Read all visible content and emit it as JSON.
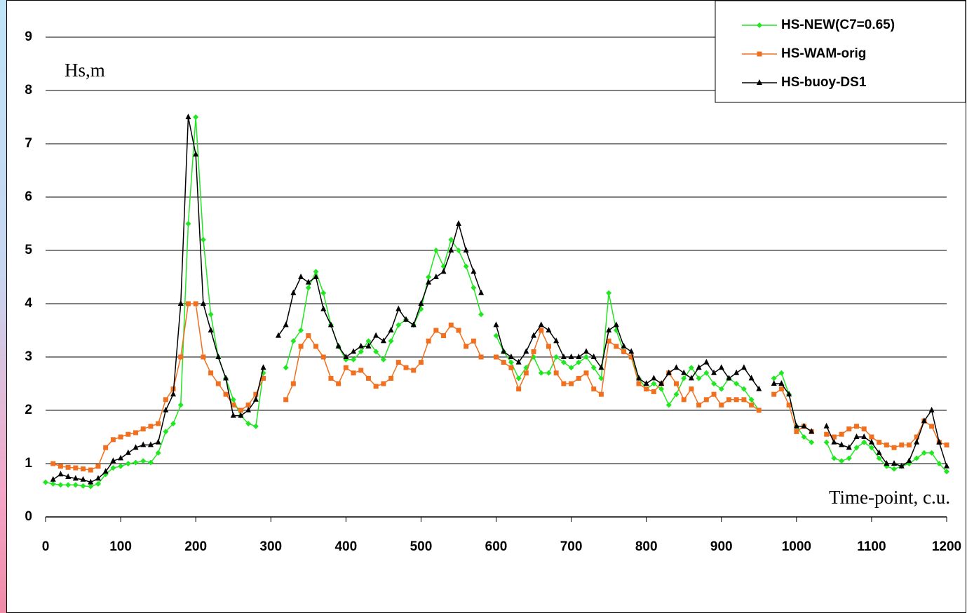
{
  "chart_data": {
    "type": "line",
    "annotations": [
      "Hs,m",
      "Time-point, c.u."
    ],
    "x": [
      0,
      10,
      20,
      30,
      40,
      50,
      60,
      70,
      80,
      90,
      100,
      110,
      120,
      130,
      140,
      150,
      160,
      170,
      180,
      190,
      200,
      210,
      220,
      230,
      240,
      250,
      260,
      270,
      280,
      290,
      300,
      310,
      320,
      330,
      340,
      350,
      360,
      370,
      380,
      390,
      400,
      410,
      420,
      430,
      440,
      450,
      460,
      470,
      480,
      490,
      500,
      510,
      520,
      530,
      540,
      550,
      560,
      570,
      580,
      590,
      600,
      610,
      620,
      630,
      640,
      650,
      660,
      670,
      680,
      690,
      700,
      710,
      720,
      730,
      740,
      750,
      760,
      770,
      780,
      790,
      800,
      810,
      820,
      830,
      840,
      850,
      860,
      870,
      880,
      890,
      900,
      910,
      920,
      930,
      940,
      950,
      960,
      970,
      980,
      990,
      1000,
      1010,
      1020,
      1030,
      1040,
      1050,
      1060,
      1070,
      1080,
      1090,
      1100,
      1110,
      1120,
      1130,
      1140,
      1150,
      1160,
      1170,
      1180,
      1190,
      1200
    ],
    "series": [
      {
        "name": "HS-NEW(C7=0.65)",
        "color": "#22e622",
        "marker": "diamond",
        "values": [
          0.65,
          0.62,
          0.6,
          0.6,
          0.6,
          0.58,
          0.57,
          0.62,
          0.8,
          0.92,
          0.95,
          1.0,
          1.02,
          1.05,
          1.02,
          1.2,
          1.6,
          1.75,
          2.1,
          5.5,
          7.5,
          5.2,
          3.8,
          3.0,
          2.6,
          2.2,
          1.9,
          1.75,
          1.7,
          2.7,
          null,
          null,
          2.8,
          3.3,
          3.5,
          4.3,
          4.6,
          4.2,
          3.6,
          3.2,
          2.95,
          2.95,
          3.1,
          3.3,
          3.1,
          2.95,
          3.3,
          3.6,
          3.7,
          3.6,
          3.9,
          4.5,
          5.0,
          4.7,
          5.2,
          5.0,
          4.7,
          4.3,
          3.8,
          null,
          3.4,
          3.1,
          2.9,
          2.6,
          2.8,
          3.0,
          2.7,
          2.7,
          3.0,
          2.9,
          2.8,
          2.9,
          3.0,
          2.8,
          2.6,
          4.2,
          3.5,
          3.1,
          3.0,
          2.6,
          2.4,
          2.5,
          2.4,
          2.1,
          2.3,
          2.6,
          2.8,
          2.6,
          2.7,
          2.5,
          2.4,
          2.6,
          2.5,
          2.4,
          2.2,
          2.0,
          null,
          2.6,
          2.7,
          2.3,
          1.7,
          1.5,
          1.4,
          null,
          1.4,
          1.1,
          1.05,
          1.1,
          1.3,
          1.4,
          1.3,
          1.1,
          0.95,
          0.9,
          0.95,
          1.0,
          1.1,
          1.2,
          1.2,
          1.0,
          0.85
        ]
      },
      {
        "name": "HS-WAM-orig",
        "color": "#f07020",
        "marker": "square",
        "values": [
          null,
          1.0,
          0.95,
          0.93,
          0.92,
          0.9,
          0.88,
          0.95,
          1.3,
          1.45,
          1.5,
          1.55,
          1.58,
          1.65,
          1.7,
          1.75,
          2.2,
          2.4,
          3.0,
          4.0,
          4.0,
          3.0,
          2.7,
          2.5,
          2.3,
          2.1,
          2.0,
          2.1,
          2.3,
          2.6,
          null,
          null,
          2.2,
          2.5,
          3.2,
          3.4,
          3.2,
          3.0,
          2.6,
          2.5,
          2.8,
          2.7,
          2.75,
          2.6,
          2.45,
          2.5,
          2.6,
          2.9,
          2.8,
          2.75,
          2.9,
          3.3,
          3.5,
          3.4,
          3.6,
          3.5,
          3.2,
          3.3,
          3.0,
          null,
          3.0,
          2.9,
          2.8,
          2.4,
          2.7,
          3.1,
          3.5,
          3.2,
          2.7,
          2.5,
          2.5,
          2.6,
          2.7,
          2.4,
          2.3,
          3.3,
          3.2,
          3.1,
          3.0,
          2.5,
          2.4,
          2.35,
          2.5,
          2.7,
          2.5,
          2.2,
          2.4,
          2.1,
          2.2,
          2.3,
          2.1,
          2.2,
          2.2,
          2.2,
          2.1,
          2.0,
          null,
          2.3,
          2.4,
          2.1,
          1.6,
          1.7,
          1.6,
          null,
          1.55,
          1.5,
          1.55,
          1.65,
          1.7,
          1.65,
          1.5,
          1.4,
          1.35,
          1.3,
          1.35,
          1.35,
          1.5,
          1.8,
          1.7,
          1.4,
          1.35
        ]
      },
      {
        "name": "HS-buoy-DS1",
        "color": "#000000",
        "marker": "triangle",
        "values": [
          null,
          0.7,
          0.8,
          0.75,
          0.72,
          0.7,
          0.65,
          0.72,
          0.85,
          1.05,
          1.1,
          1.2,
          1.3,
          1.35,
          1.35,
          1.4,
          2.0,
          2.3,
          4.0,
          7.5,
          6.8,
          4.0,
          3.5,
          3.0,
          2.6,
          1.9,
          1.9,
          2.0,
          2.2,
          2.8,
          null,
          3.4,
          3.6,
          4.2,
          4.5,
          4.4,
          4.5,
          3.9,
          3.6,
          3.2,
          3.0,
          3.1,
          3.2,
          3.2,
          3.4,
          3.3,
          3.5,
          3.9,
          3.7,
          3.6,
          4.0,
          4.4,
          4.5,
          4.6,
          5.0,
          5.5,
          5.0,
          4.6,
          4.2,
          null,
          3.6,
          3.1,
          3.0,
          2.9,
          3.1,
          3.4,
          3.6,
          3.5,
          3.3,
          3.0,
          3.0,
          3.0,
          3.1,
          3.0,
          2.8,
          3.5,
          3.6,
          3.2,
          3.1,
          2.6,
          2.5,
          2.6,
          2.5,
          2.7,
          2.8,
          2.7,
          2.6,
          2.8,
          2.9,
          2.7,
          2.8,
          2.6,
          2.7,
          2.8,
          2.6,
          2.4,
          null,
          2.5,
          2.5,
          2.3,
          1.7,
          1.7,
          1.6,
          null,
          1.7,
          1.4,
          1.35,
          1.3,
          1.5,
          1.5,
          1.4,
          1.2,
          1.0,
          1.0,
          0.95,
          1.05,
          1.4,
          1.8,
          2.0,
          1.4,
          0.95
        ]
      }
    ],
    "xlim": [
      0,
      1200
    ],
    "xticks": [
      0,
      100,
      200,
      300,
      400,
      500,
      600,
      700,
      800,
      900,
      1000,
      1100,
      1200
    ],
    "ylim": [
      0,
      9
    ],
    "yticks": [
      0,
      1,
      2,
      3,
      4,
      5,
      6,
      7,
      8,
      9
    ],
    "grid": true,
    "legend": "upper right"
  }
}
